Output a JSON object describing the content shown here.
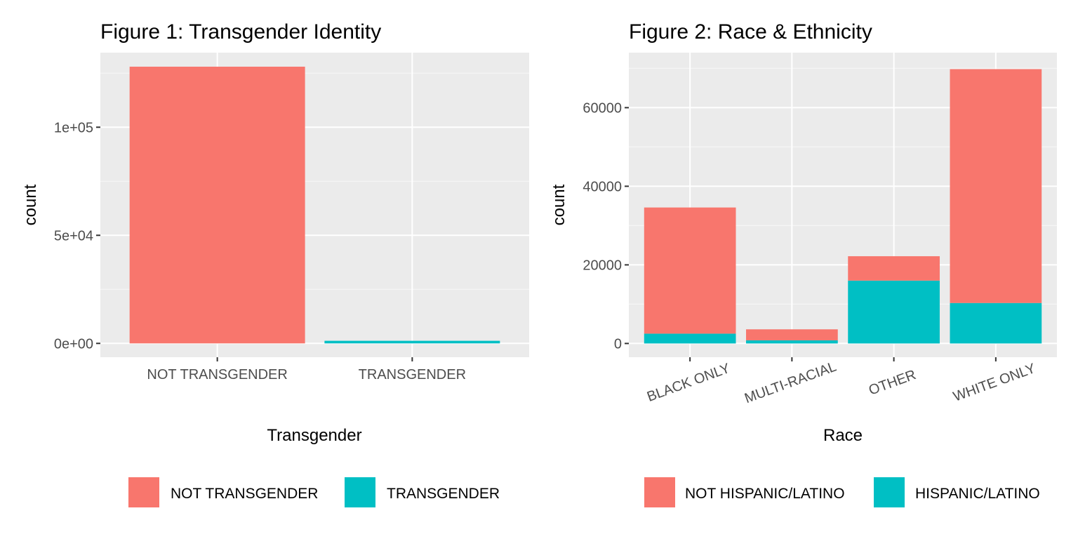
{
  "colors": {
    "panel_bg": "#EBEBEB",
    "grid_major": "#FFFFFF",
    "grid_minor": "#F5F5F5",
    "tick_text": "#4D4D4D",
    "tick_mark": "#333333",
    "pink": "#F8766D",
    "teal": "#00BFC4"
  },
  "chart_data": [
    {
      "type": "bar",
      "title": "Figure 1: Transgender Identity",
      "xlabel": "Transgender",
      "ylabel": "count",
      "categories": [
        "NOT TRANSGENDER",
        "TRANSGENDER"
      ],
      "values": [
        128000,
        1200
      ],
      "bar_colors": [
        "#F8766D",
        "#00BFC4"
      ],
      "ylim": [
        -6400,
        134500
      ],
      "yticks": [
        0,
        50000,
        100000
      ],
      "ytick_labels": [
        "0e+00",
        "5e+04",
        "1e+05"
      ],
      "grid": true,
      "legend": {
        "position": "bottom",
        "items": [
          {
            "label": "NOT TRANSGENDER",
            "color": "#F8766D"
          },
          {
            "label": "TRANSGENDER",
            "color": "#00BFC4"
          }
        ]
      }
    },
    {
      "type": "stacked bar",
      "title": "Figure 2: Race & Ethnicity",
      "xlabel": "Race",
      "ylabel": "count",
      "categories": [
        "BLACK ONLY",
        "MULTI-RACIAL",
        "OTHER",
        "WHITE ONLY"
      ],
      "series": [
        {
          "name": "HISPANIC/LATINO",
          "color": "#00BFC4",
          "values": [
            2500,
            800,
            16000,
            10300
          ]
        },
        {
          "name": "NOT HISPANIC/LATINO",
          "color": "#F8766D",
          "values": [
            32100,
            2800,
            6200,
            59500
          ]
        }
      ],
      "ylim": [
        -3500,
        74000
      ],
      "yticks": [
        0,
        20000,
        40000,
        60000
      ],
      "ytick_labels": [
        "0",
        "20000",
        "40000",
        "60000"
      ],
      "x_tick_rotation": -20,
      "grid": true,
      "legend": {
        "position": "bottom",
        "items": [
          {
            "label": "NOT HISPANIC/LATINO",
            "color": "#F8766D"
          },
          {
            "label": "HISPANIC/LATINO",
            "color": "#00BFC4"
          }
        ]
      }
    }
  ]
}
